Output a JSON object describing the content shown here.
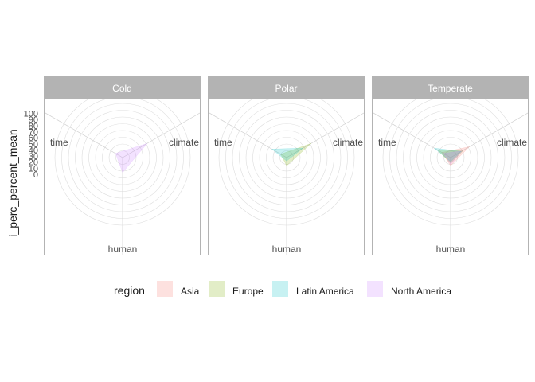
{
  "chart_data": {
    "type": "radar",
    "ylabel": "i_perc_percent_mean",
    "axes": [
      "climate",
      "human",
      "time"
    ],
    "radial_ticks": [
      0,
      10,
      20,
      30,
      40,
      50,
      60,
      70,
      80,
      90,
      100
    ],
    "rlim": [
      0,
      100
    ],
    "grid": true,
    "legend": {
      "title": "region",
      "position": "bottom",
      "entries": [
        "Asia",
        "Europe",
        "Latin America",
        "North America"
      ]
    },
    "series_colors": {
      "Asia": "#F8766D",
      "Europe": "#7CAE00",
      "Latin America": "#00BFC4",
      "North America": "#C77CFF"
    },
    "facets": [
      {
        "title": "Cold",
        "series": [
          {
            "name": "North America",
            "values": {
              "climate": 42,
              "human": 22,
              "time": 12
            }
          }
        ]
      },
      {
        "title": "Polar",
        "series": [
          {
            "name": "Europe",
            "values": {
              "climate": 42,
              "human": 12,
              "time": 10
            }
          },
          {
            "name": "Latin America",
            "values": {
              "climate": 28,
              "human": 5,
              "time": 25
            }
          }
        ]
      },
      {
        "title": "Temperate",
        "series": [
          {
            "name": "Asia",
            "values": {
              "climate": 32,
              "human": 12,
              "time": 15
            }
          },
          {
            "name": "Europe",
            "values": {
              "climate": 22,
              "human": 8,
              "time": 22
            }
          },
          {
            "name": "Latin America",
            "values": {
              "climate": 18,
              "human": 6,
              "time": 28
            }
          },
          {
            "name": "North America",
            "values": {
              "climate": 20,
              "human": 10,
              "time": 12
            }
          }
        ]
      }
    ]
  }
}
